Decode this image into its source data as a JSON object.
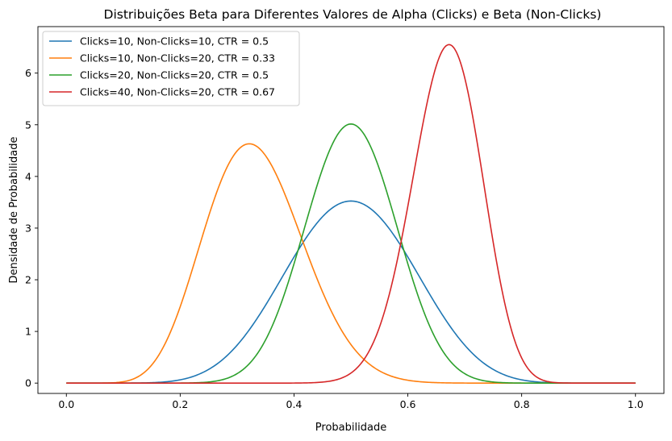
{
  "chart_data": {
    "type": "line",
    "title": "Distribuições Beta para Diferentes Valores de Alpha (Clicks) e Beta (Non-Clicks)",
    "xlabel": "Probabilidade",
    "ylabel": "Densidade de Probabilidade",
    "xlim": [
      -0.05,
      1.05
    ],
    "ylim": [
      -0.2,
      6.9
    ],
    "x_ticks": [
      0.0,
      0.2,
      0.4,
      0.6,
      0.8,
      1.0
    ],
    "x_tick_labels": [
      "0.0",
      "0.2",
      "0.4",
      "0.6",
      "0.8",
      "1.0"
    ],
    "y_ticks": [
      0,
      1,
      2,
      3,
      4,
      5,
      6
    ],
    "y_tick_labels": [
      "0",
      "1",
      "2",
      "3",
      "4",
      "5",
      "6"
    ],
    "grid": false,
    "legend_position": "top-left",
    "series": [
      {
        "name": "Clicks=10, Non-Clicks=10, CTR = 0.5",
        "alpha": 10,
        "beta": 10,
        "color": "#1f77b4"
      },
      {
        "name": "Clicks=10, Non-Clicks=20, CTR = 0.33",
        "alpha": 10,
        "beta": 20,
        "color": "#ff7f0e"
      },
      {
        "name": "Clicks=20, Non-Clicks=20, CTR = 0.5",
        "alpha": 20,
        "beta": 20,
        "color": "#2ca02c"
      },
      {
        "name": "Clicks=40, Non-Clicks=20, CTR = 0.67",
        "alpha": 40,
        "beta": 20,
        "color": "#d62728"
      }
    ]
  }
}
